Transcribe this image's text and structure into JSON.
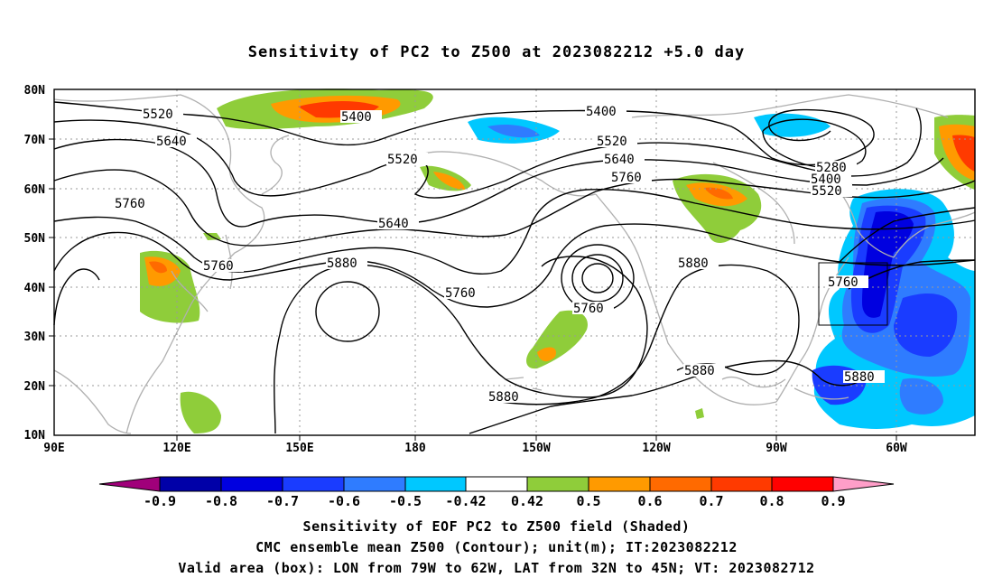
{
  "title": "Sensitivity of PC2 to Z500 at 2023082212 +5.0 day",
  "map": {
    "lon_labels": [
      "90E",
      "120E",
      "150E",
      "180",
      "150W",
      "120W",
      "90W",
      "60W"
    ],
    "lat_labels": [
      "80N",
      "70N",
      "60N",
      "50N",
      "40N",
      "30N",
      "20N",
      "10N"
    ],
    "valid_box": {
      "lon_from": "79W",
      "lon_to": "62W",
      "lat_from": "32N",
      "lat_to": "45N"
    },
    "contour_labels": [
      "5520",
      "5400",
      "5400",
      "5640",
      "5520",
      "5520",
      "5640",
      "5760",
      "5280",
      "5400",
      "5520",
      "5760",
      "5640",
      "5760",
      "5880",
      "5760",
      "5760",
      "5880",
      "5760",
      "5880",
      "5880",
      "5880"
    ]
  },
  "colorbar": {
    "labels": [
      "-0.9",
      "-0.8",
      "-0.7",
      "-0.6",
      "-0.5",
      "-0.42",
      "0.42",
      "0.5",
      "0.6",
      "0.7",
      "0.8",
      "0.9"
    ],
    "colors": [
      "#a0007a",
      "#0000a8",
      "#0000e0",
      "#1a3cff",
      "#2f7cff",
      "#00c8ff",
      "#ffffff",
      "#8fcd3a",
      "#ff9a00",
      "#ff6a00",
      "#ff3a00",
      "#ff0000",
      "#ff9ec8"
    ]
  },
  "captions": {
    "line1": "Sensitivity of EOF PC2 to Z500 field (Shaded)",
    "line2": "CMC ensemble mean Z500 (Contour); unit(m); IT:2023082212",
    "line3": "Valid area (box): LON from 79W to 62W, LAT from 32N to 45N; VT: 2023082712"
  }
}
